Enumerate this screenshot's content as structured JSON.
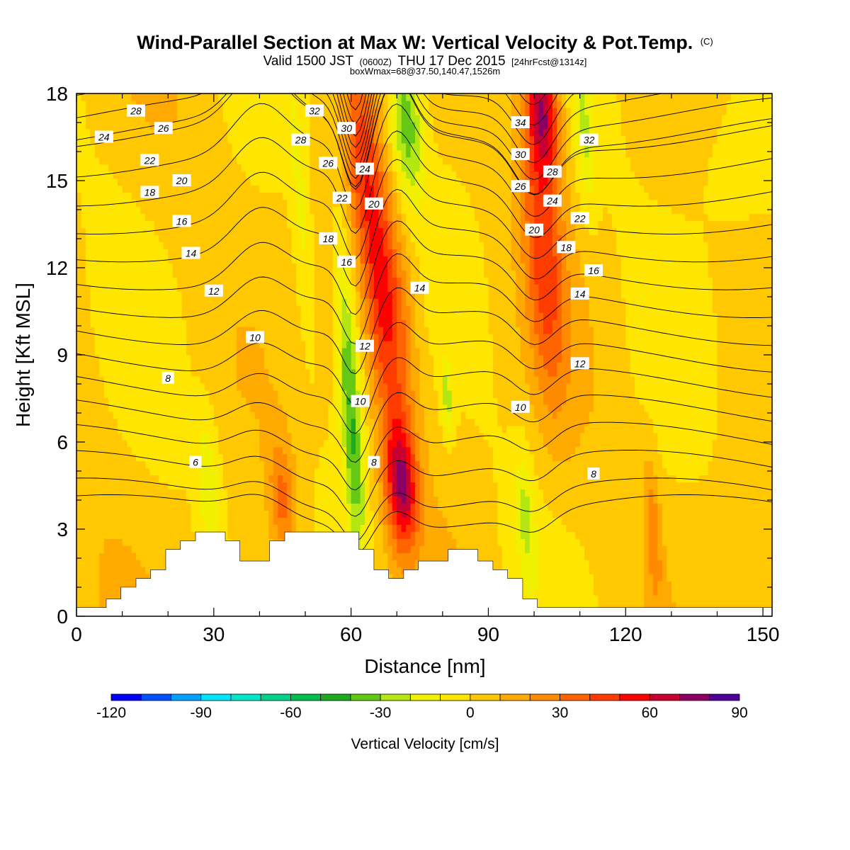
{
  "title": {
    "main": "Wind-Parallel Section at Max W: Vertical Velocity & Pot.Temp.",
    "main_suffix": "(C)",
    "valid_prefix": "Valid 1500 JST",
    "valid_utc": "(0600Z)",
    "valid_date": "THU 17 Dec 2015",
    "forecast": "[24hrFcst@1314z]",
    "box_info": "boxWmax=68@37.50,140.47,1526m"
  },
  "chart_data": {
    "type": "heatmap",
    "xlabel": "Distance [nm]",
    "ylabel": "Height [Kft MSL]",
    "xlim": [
      0,
      152
    ],
    "ylim": [
      0,
      18
    ],
    "xticks": [
      0,
      30,
      60,
      90,
      120,
      150
    ],
    "yticks": [
      0,
      3,
      6,
      9,
      12,
      15,
      18
    ],
    "colorbar": {
      "title": "Vertical Velocity [cm/s]",
      "ticks": [
        -120,
        -90,
        -60,
        -30,
        0,
        30,
        60,
        90
      ],
      "min": -120,
      "max": 90,
      "step": 10,
      "colors": [
        "#0000ff",
        "#0050ff",
        "#00a0ff",
        "#00e6ff",
        "#00e6c8",
        "#00d28c",
        "#00be50",
        "#1eaa1e",
        "#64c814",
        "#b4e614",
        "#f0f000",
        "#ffe600",
        "#ffc800",
        "#ffaa00",
        "#ff8c00",
        "#ff6400",
        "#ff3c00",
        "#ff0000",
        "#c80032",
        "#8c0064",
        "#500096"
      ]
    },
    "background_value": 3,
    "velocity_features": [
      {
        "x": 70,
        "y": 10,
        "sx": 3,
        "sy": 3,
        "v": 30,
        "kind": "updraft"
      },
      {
        "x": 71,
        "y": 4.5,
        "sx": 2.5,
        "sy": 1.6,
        "v": 62,
        "kind": "updraft"
      },
      {
        "x": 66,
        "y": 11.5,
        "sx": 2.5,
        "sy": 3.5,
        "v": 35,
        "kind": "updraft"
      },
      {
        "x": 62,
        "y": 16,
        "sx": 2.5,
        "sy": 2.5,
        "v": 30,
        "kind": "updraft"
      },
      {
        "x": 102,
        "y": 13,
        "sx": 3,
        "sy": 4,
        "v": 38,
        "kind": "updraft"
      },
      {
        "x": 102,
        "y": 17.5,
        "sx": 2.5,
        "sy": 1.5,
        "v": 55,
        "kind": "updraft"
      },
      {
        "x": 45,
        "y": 4,
        "sx": 2,
        "sy": 1.5,
        "v": 30,
        "kind": "updraft"
      },
      {
        "x": 126,
        "y": 3,
        "sx": 1.2,
        "sy": 1.8,
        "v": 22,
        "kind": "updraft"
      },
      {
        "x": 60,
        "y": 7,
        "sx": 1.6,
        "sy": 4,
        "v": -42,
        "kind": "downdraft"
      },
      {
        "x": 72,
        "y": 17,
        "sx": 2.5,
        "sy": 2,
        "v": -40,
        "kind": "downdraft"
      },
      {
        "x": 29,
        "y": 4.5,
        "sx": 1.8,
        "sy": 1.8,
        "v": -22,
        "kind": "downdraft"
      },
      {
        "x": 98,
        "y": 3.5,
        "sx": 1.5,
        "sy": 1.5,
        "v": -22,
        "kind": "downdraft"
      },
      {
        "x": 81,
        "y": 7.5,
        "sx": 1,
        "sy": 1,
        "v": -25,
        "kind": "downdraft"
      },
      {
        "x": 111,
        "y": 16.5,
        "sx": 1.5,
        "sy": 2,
        "v": -20,
        "kind": "downdraft"
      },
      {
        "x": 49,
        "y": 14,
        "sx": 1.5,
        "sy": 3.5,
        "v": -15,
        "kind": "downdraft"
      }
    ],
    "terrain": [
      [
        0,
        0.3
      ],
      [
        6.5,
        0.3
      ],
      [
        6.5,
        0.6
      ],
      [
        9.7,
        0.6
      ],
      [
        9.7,
        1.0
      ],
      [
        13,
        1.0
      ],
      [
        13,
        1.3
      ],
      [
        16.2,
        1.3
      ],
      [
        16.2,
        1.6
      ],
      [
        19.5,
        1.6
      ],
      [
        19.5,
        2.3
      ],
      [
        22.7,
        2.3
      ],
      [
        22.7,
        2.6
      ],
      [
        26,
        2.6
      ],
      [
        26,
        2.9
      ],
      [
        32.5,
        2.9
      ],
      [
        32.5,
        2.6
      ],
      [
        35.7,
        2.6
      ],
      [
        35.7,
        1.9
      ],
      [
        42.2,
        1.9
      ],
      [
        42.2,
        2.6
      ],
      [
        45.5,
        2.6
      ],
      [
        45.5,
        2.9
      ],
      [
        61.7,
        2.9
      ],
      [
        61.7,
        2.3
      ],
      [
        65,
        2.3
      ],
      [
        65,
        1.6
      ],
      [
        68.2,
        1.6
      ],
      [
        68.2,
        1.3
      ],
      [
        71.5,
        1.3
      ],
      [
        71.5,
        1.6
      ],
      [
        74.7,
        1.6
      ],
      [
        74.7,
        1.9
      ],
      [
        81.2,
        1.9
      ],
      [
        81.2,
        2.3
      ],
      [
        87.7,
        2.3
      ],
      [
        87.7,
        1.9
      ],
      [
        91,
        1.9
      ],
      [
        91,
        1.6
      ],
      [
        94.2,
        1.6
      ],
      [
        94.2,
        1.3
      ],
      [
        97.5,
        1.3
      ],
      [
        97.5,
        0.6
      ],
      [
        100.7,
        0.6
      ],
      [
        100.7,
        0.3
      ],
      [
        152,
        0.3
      ]
    ],
    "isentropes": {
      "levels": [
        4,
        5,
        6,
        7,
        8,
        9,
        10,
        11,
        12,
        13,
        14,
        15,
        16,
        17,
        18,
        19,
        20,
        21,
        22,
        23,
        24,
        25,
        26,
        27,
        28,
        29,
        30,
        31,
        32,
        33,
        34,
        35,
        36
      ],
      "labels": [
        {
          "text": "28",
          "x": 13,
          "y": 17.4
        },
        {
          "text": "26",
          "x": 19,
          "y": 16.8
        },
        {
          "text": "24",
          "x": 6,
          "y": 16.5
        },
        {
          "text": "22",
          "x": 16,
          "y": 15.7
        },
        {
          "text": "20",
          "x": 23,
          "y": 15.0
        },
        {
          "text": "18",
          "x": 16,
          "y": 14.6
        },
        {
          "text": "16",
          "x": 23,
          "y": 13.6
        },
        {
          "text": "14",
          "x": 25,
          "y": 12.5
        },
        {
          "text": "12",
          "x": 30,
          "y": 11.2
        },
        {
          "text": "10",
          "x": 39,
          "y": 9.6
        },
        {
          "text": "8",
          "x": 20,
          "y": 8.2
        },
        {
          "text": "6",
          "x": 26,
          "y": 5.3
        },
        {
          "text": "32",
          "x": 52,
          "y": 17.4
        },
        {
          "text": "30",
          "x": 59,
          "y": 16.8
        },
        {
          "text": "28",
          "x": 49,
          "y": 16.4
        },
        {
          "text": "26",
          "x": 55,
          "y": 15.6
        },
        {
          "text": "24",
          "x": 63,
          "y": 15.4
        },
        {
          "text": "22",
          "x": 58,
          "y": 14.4
        },
        {
          "text": "20",
          "x": 65,
          "y": 14.2
        },
        {
          "text": "18",
          "x": 55,
          "y": 13.0
        },
        {
          "text": "16",
          "x": 59,
          "y": 12.2
        },
        {
          "text": "14",
          "x": 75,
          "y": 11.3
        },
        {
          "text": "12",
          "x": 63,
          "y": 9.3
        },
        {
          "text": "10",
          "x": 62,
          "y": 7.4
        },
        {
          "text": "8",
          "x": 65,
          "y": 5.3
        },
        {
          "text": "34",
          "x": 97,
          "y": 17.0
        },
        {
          "text": "32",
          "x": 112,
          "y": 16.4
        },
        {
          "text": "30",
          "x": 97,
          "y": 15.9
        },
        {
          "text": "28",
          "x": 104,
          "y": 15.3
        },
        {
          "text": "26",
          "x": 97,
          "y": 14.8
        },
        {
          "text": "24",
          "x": 104,
          "y": 14.3
        },
        {
          "text": "22",
          "x": 110,
          "y": 13.7
        },
        {
          "text": "20",
          "x": 100,
          "y": 13.3
        },
        {
          "text": "18",
          "x": 107,
          "y": 12.7
        },
        {
          "text": "16",
          "x": 113,
          "y": 11.9
        },
        {
          "text": "14",
          "x": 110,
          "y": 11.1
        },
        {
          "text": "12",
          "x": 110,
          "y": 8.7
        },
        {
          "text": "10",
          "x": 97,
          "y": 7.2
        },
        {
          "text": "8",
          "x": 113,
          "y": 4.9
        }
      ]
    }
  }
}
